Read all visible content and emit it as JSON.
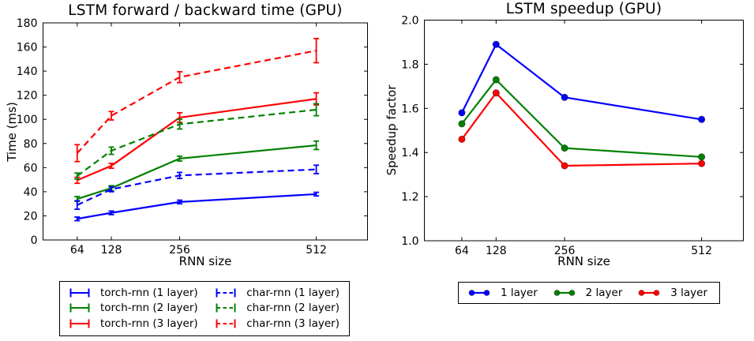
{
  "figure": {
    "background": "#ffffff",
    "axis_color": "#000000"
  },
  "chart_data": [
    {
      "type": "line",
      "title": "LSTM forward / backward time (GPU)",
      "xlabel": "RNN size",
      "ylabel": "Time (ms)",
      "grid": false,
      "error_bars": true,
      "legend_position": "below-left, 2 columns, boxed",
      "x": [
        64,
        128,
        256,
        512
      ],
      "xtick_labels": [
        "64",
        "128",
        "256",
        "512"
      ],
      "xlim": [
        0,
        608
      ],
      "ylim": [
        0,
        180
      ],
      "ytick_values": [
        0,
        20,
        40,
        60,
        80,
        100,
        120,
        140,
        160,
        180
      ],
      "ytick_labels": [
        "0",
        "20",
        "40",
        "60",
        "80",
        "100",
        "120",
        "140",
        "160",
        "180"
      ],
      "series": [
        {
          "name": "torch-rnn (1 layer)",
          "color": "#0000ff",
          "line": "solid",
          "values": [
            17.5,
            22.5,
            31.5,
            38
          ],
          "errors": [
            1.5,
            1.5,
            1.5,
            1.5
          ]
        },
        {
          "name": "torch-rnn (2 layer)",
          "color": "#008000",
          "line": "solid",
          "values": [
            34,
            43,
            67.5,
            78.5
          ],
          "errors": [
            2,
            2,
            2,
            3.5
          ]
        },
        {
          "name": "torch-rnn (3 layer)",
          "color": "#ff0000",
          "line": "solid",
          "values": [
            49.5,
            61.5,
            101.5,
            117
          ],
          "errors": [
            2.5,
            2,
            4,
            5
          ]
        },
        {
          "name": "char-rnn (1 layer)",
          "color": "#0000ff",
          "line": "dashed",
          "values": [
            29,
            42,
            53.5,
            58.5
          ],
          "errors": [
            3.5,
            2,
            2.5,
            3.5
          ]
        },
        {
          "name": "char-rnn (2 layer)",
          "color": "#008000",
          "line": "dashed",
          "values": [
            53,
            74,
            96,
            108
          ],
          "errors": [
            2.5,
            3,
            4,
            5
          ]
        },
        {
          "name": "char-rnn (3 layer)",
          "color": "#ff0000",
          "line": "dashed",
          "values": [
            72,
            103,
            135,
            157
          ],
          "errors": [
            7,
            3.5,
            4.5,
            10
          ]
        }
      ]
    },
    {
      "type": "line",
      "title": "LSTM speedup (GPU)",
      "xlabel": "RNN size",
      "ylabel": "Speedup factor",
      "grid": false,
      "error_bars": false,
      "legend_position": "below, 1 row, boxed",
      "x": [
        64,
        128,
        256,
        512
      ],
      "xtick_labels": [
        "64",
        "128",
        "256",
        "512"
      ],
      "xlim": [
        -6,
        590
      ],
      "ylim": [
        1.0,
        2.0
      ],
      "ytick_values": [
        1.0,
        1.2,
        1.4,
        1.6,
        1.8,
        2.0
      ],
      "ytick_labels": [
        "1.0",
        "1.2",
        "1.4",
        "1.6",
        "1.8",
        "2.0"
      ],
      "series": [
        {
          "name": "1 layer",
          "color": "#0000ff",
          "line": "solid",
          "marker": "circle",
          "values": [
            1.58,
            1.89,
            1.65,
            1.55
          ]
        },
        {
          "name": "2 layer",
          "color": "#008000",
          "line": "solid",
          "marker": "circle",
          "values": [
            1.53,
            1.73,
            1.42,
            1.38
          ]
        },
        {
          "name": "3 layer",
          "color": "#ff0000",
          "line": "solid",
          "marker": "circle",
          "values": [
            1.46,
            1.67,
            1.34,
            1.35
          ]
        }
      ]
    }
  ]
}
